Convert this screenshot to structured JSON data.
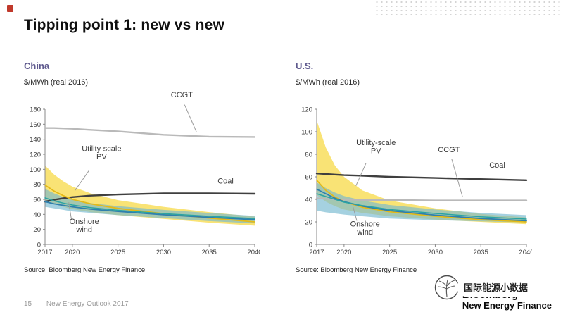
{
  "page": {
    "title": "Tipping point 1: new vs new"
  },
  "footer": {
    "page_number": "15",
    "deck_title": "New Energy Outlook 2017"
  },
  "logo": {
    "line1": "Bloomberg",
    "line2": "New Energy Finance"
  },
  "watermark": {
    "text": "国际能源小数据"
  },
  "chart_data": [
    {
      "type": "line",
      "title": "China",
      "ylabel": "$/MWh (real 2016)",
      "source": "Source: Bloomberg New Energy Finance",
      "ylim": [
        0,
        180
      ],
      "ytick_step": 20,
      "grid": false,
      "legend": "none",
      "xticks": [
        2017,
        2020,
        2025,
        2030,
        2035,
        2040
      ],
      "x": [
        2017,
        2018,
        2019,
        2020,
        2022,
        2025,
        2030,
        2035,
        2040
      ],
      "bands": [
        {
          "name": "utility-scale-pv-range",
          "color": "#f8e066",
          "opacity": 0.9,
          "hi": [
            105,
            93,
            84,
            77,
            68,
            59,
            50,
            43,
            37
          ],
          "lo": [
            59,
            54,
            50,
            47,
            43,
            39,
            34,
            29,
            25
          ]
        },
        {
          "name": "onshore-wind-range",
          "color": "#74b9cf",
          "opacity": 0.65,
          "hi": [
            74,
            68,
            63,
            60,
            55,
            51,
            46,
            42,
            38
          ],
          "lo": [
            50,
            48,
            46,
            44,
            42,
            39,
            35,
            31,
            28
          ]
        }
      ],
      "series": [
        {
          "name": "CCGT",
          "color": "#b9b9b9",
          "width": 2.4,
          "values": [
            155,
            155,
            154.5,
            154,
            152.5,
            150.5,
            146,
            143.5,
            143
          ]
        },
        {
          "name": "Coal",
          "color": "#3f3f3f",
          "width": 2.4,
          "values": [
            57,
            59.5,
            61.5,
            63,
            65,
            66.5,
            68,
            68,
            67.5
          ]
        },
        {
          "name": "Utility-scale PV",
          "color": "#e4ba17",
          "width": 1.8,
          "values": [
            79,
            71,
            65,
            60,
            54,
            48,
            41,
            35,
            30
          ]
        },
        {
          "name": "Onshore wind",
          "color": "#2f7fae",
          "width": 1.8,
          "values": [
            57,
            54,
            52,
            50,
            47,
            44,
            39.5,
            36,
            33
          ]
        },
        {
          "name": "Onshore wind mid",
          "color": "#2ba3a3",
          "width": 1.5,
          "values": [
            62,
            58,
            55,
            52.5,
            49,
            45.5,
            41,
            37.5,
            34.5
          ]
        }
      ],
      "annotations": [
        {
          "lines": [
            "CCGT"
          ],
          "year": 2032,
          "value": 196,
          "leader": [
            2032.3,
            186,
            2033.6,
            150
          ]
        },
        {
          "lines": [
            "Utility-scale",
            "PV"
          ],
          "year": 2023.2,
          "value": 124,
          "leader": [
            2021.8,
            98,
            2020.3,
            72
          ]
        },
        {
          "lines": [
            "Coal"
          ],
          "year": 2036.8,
          "value": 81
        },
        {
          "lines": [
            "Onshore",
            "wind"
          ],
          "year": 2021.3,
          "value": 27,
          "leader": [
            2019.9,
            33,
            2019.6,
            56
          ]
        }
      ]
    },
    {
      "type": "line",
      "title": "U.S.",
      "ylabel": "$/MWh (real 2016)",
      "source": "Source: Bloomberg New Energy Finance",
      "ylim": [
        0,
        120
      ],
      "ytick_step": 20,
      "grid": false,
      "legend": "none",
      "xticks": [
        2017,
        2020,
        2025,
        2030,
        2035,
        2040
      ],
      "x": [
        2017,
        2018,
        2019,
        2020,
        2022,
        2025,
        2030,
        2035,
        2040
      ],
      "bands": [
        {
          "name": "utility-scale-pv-range",
          "color": "#f8e066",
          "opacity": 0.9,
          "hi": [
            110,
            86,
            70,
            60,
            48,
            39,
            32,
            27,
            24
          ],
          "lo": [
            44,
            38,
            34,
            31,
            28,
            25,
            22,
            20,
            18
          ]
        },
        {
          "name": "onshore-wind-range",
          "color": "#74b9cf",
          "opacity": 0.65,
          "hi": [
            55,
            50,
            46,
            43,
            39,
            35,
            31,
            28,
            26
          ],
          "lo": [
            30,
            28.5,
            27.5,
            26.5,
            25,
            23,
            21.5,
            20.5,
            19.5
          ]
        }
      ],
      "series": [
        {
          "name": "Coal",
          "color": "#3f3f3f",
          "width": 2.4,
          "values": [
            63,
            62.5,
            62,
            61.5,
            61,
            60,
            59,
            58,
            57
          ]
        },
        {
          "name": "CCGT",
          "color": "#b9b9b9",
          "width": 2.4,
          "values": [
            41,
            40.5,
            40,
            40,
            39.5,
            39.5,
            39,
            39,
            39
          ]
        },
        {
          "name": "Utility-scale PV",
          "color": "#e4ba17",
          "width": 1.8,
          "values": [
            57,
            48,
            42,
            38,
            33,
            29,
            25,
            22,
            20
          ]
        },
        {
          "name": "Onshore wind",
          "color": "#2f7fae",
          "width": 1.8,
          "values": [
            49,
            45,
            41,
            38,
            34,
            30,
            26,
            23,
            21
          ]
        },
        {
          "name": "Onshore wind mid",
          "color": "#2ba3a3",
          "width": 1.5,
          "values": [
            45,
            42.5,
            40,
            37.5,
            34.5,
            31,
            27.5,
            24.5,
            22.5
          ]
        }
      ],
      "annotations": [
        {
          "lines": [
            "Utility-scale",
            "PV"
          ],
          "year": 2023.5,
          "value": 88,
          "leader": [
            2022.4,
            72,
            2021.3,
            52
          ]
        },
        {
          "lines": [
            "CCGT"
          ],
          "year": 2031.5,
          "value": 82,
          "leader": [
            2031.8,
            76,
            2033,
            42
          ]
        },
        {
          "lines": [
            "Coal"
          ],
          "year": 2036.8,
          "value": 68
        },
        {
          "lines": [
            "Onshore",
            "wind"
          ],
          "year": 2022.3,
          "value": 16,
          "leader": [
            2021.4,
            21,
            2021,
            33
          ]
        }
      ]
    }
  ]
}
